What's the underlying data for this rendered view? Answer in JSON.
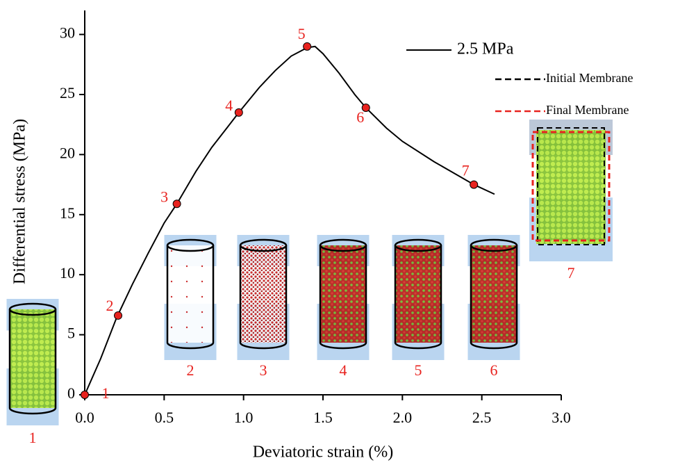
{
  "chart_data": {
    "type": "line",
    "x_label": "Deviatoric strain (%)",
    "y_label": "Differential stress (MPa)",
    "xlim": [
      0,
      3.0
    ],
    "ylim": [
      0,
      32
    ],
    "xticks": [
      {
        "value": 0,
        "label": "0.0"
      },
      {
        "value": 0.5,
        "label": "0.5"
      },
      {
        "value": 1,
        "label": "1.0"
      },
      {
        "value": 1.5,
        "label": "1.5"
      },
      {
        "value": 2,
        "label": "2.0"
      },
      {
        "value": 2.5,
        "label": "2.5"
      },
      {
        "value": 3,
        "label": "3.0"
      }
    ],
    "yticks": [
      0,
      5,
      10,
      15,
      20,
      25,
      30
    ],
    "series": [
      {
        "name": "2.5 MPa",
        "color": "#000000",
        "x": [
          0,
          0.1,
          0.2,
          0.3,
          0.4,
          0.5,
          0.58,
          0.7,
          0.8,
          0.9,
          0.97,
          1.1,
          1.2,
          1.3,
          1.4,
          1.45,
          1.5,
          1.6,
          1.7,
          1.77,
          1.9,
          2.0,
          2.2,
          2.45,
          2.58
        ],
        "values": [
          0,
          3,
          6.4,
          9.2,
          11.8,
          14.3,
          15.9,
          18.6,
          20.6,
          22.3,
          23.5,
          25.6,
          27,
          28.2,
          28.9,
          29,
          28.4,
          26.8,
          25,
          23.9,
          22.2,
          21.1,
          19.4,
          17.5,
          16.7
        ]
      }
    ],
    "points": {
      "color": "#e8231f",
      "labels": [
        "1",
        "2",
        "3",
        "4",
        "5",
        "6",
        "7"
      ],
      "x": [
        0,
        0.21,
        0.58,
        0.97,
        1.4,
        1.77,
        2.45
      ],
      "values": [
        0,
        6.6,
        15.9,
        23.5,
        29,
        23.9,
        17.5
      ]
    },
    "membrane_legend": [
      {
        "label": "Initial Membrane",
        "color": "#000000"
      },
      {
        "label": "Final Membrane",
        "color": "#e8231f"
      }
    ],
    "insets": [
      {
        "label": "1"
      },
      {
        "label": "2"
      },
      {
        "label": "3"
      },
      {
        "label": "4"
      },
      {
        "label": "5"
      },
      {
        "label": "6"
      },
      {
        "label": "7"
      }
    ]
  }
}
